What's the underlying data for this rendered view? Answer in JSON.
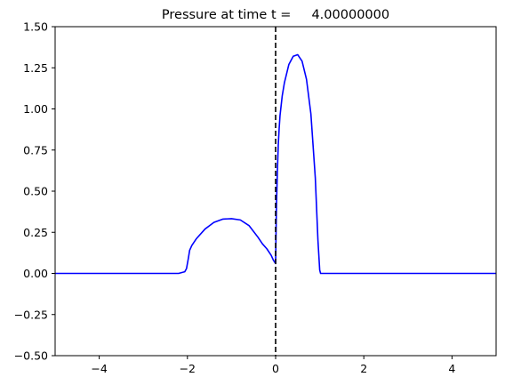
{
  "chart_data": {
    "type": "line",
    "title": "Pressure at time t =     4.00000000",
    "xlabel": "",
    "ylabel": "",
    "xlim": [
      -5,
      5
    ],
    "ylim": [
      -0.5,
      1.5
    ],
    "grid": false,
    "xticks": [
      -4,
      -2,
      0,
      2,
      4
    ],
    "xtick_labels": [
      "−4",
      "−2",
      "0",
      "2",
      "4"
    ],
    "yticks": [
      -0.5,
      -0.25,
      0.0,
      0.25,
      0.5,
      0.75,
      1.0,
      1.25,
      1.5
    ],
    "ytick_labels": [
      "−0.50",
      "−0.25",
      "0.00",
      "0.25",
      "0.50",
      "0.75",
      "1.00",
      "1.25",
      "1.50"
    ],
    "series": [
      {
        "color": "#0000ff",
        "linestyle": "solid",
        "x": [
          -5.0,
          -4.0,
          -3.0,
          -2.2,
          -2.06,
          -2.02,
          -2.0,
          -1.98,
          -1.95,
          -1.9,
          -1.8,
          -1.6,
          -1.4,
          -1.2,
          -1.0,
          -0.8,
          -0.6,
          -0.4,
          -0.3,
          -0.2,
          -0.1,
          -0.05,
          0.0,
          0.01,
          0.02,
          0.04,
          0.06,
          0.08,
          0.1,
          0.15,
          0.2,
          0.3,
          0.4,
          0.5,
          0.6,
          0.7,
          0.8,
          0.9,
          0.96,
          1.0,
          1.02,
          1.05,
          1.1,
          2.0,
          3.0,
          4.0,
          5.0
        ],
        "y": [
          0.0,
          0.0,
          0.0,
          0.0,
          0.01,
          0.03,
          0.06,
          0.09,
          0.14,
          0.17,
          0.21,
          0.27,
          0.31,
          0.33,
          0.333,
          0.325,
          0.29,
          0.22,
          0.18,
          0.15,
          0.11,
          0.08,
          0.06,
          0.25,
          0.42,
          0.62,
          0.78,
          0.88,
          0.96,
          1.08,
          1.16,
          1.27,
          1.32,
          1.33,
          1.29,
          1.18,
          0.97,
          0.58,
          0.2,
          0.02,
          0.0,
          0.0,
          0.0,
          0.0,
          0.0,
          0.0,
          0.0
        ]
      }
    ],
    "vlines": [
      {
        "x": 0,
        "color": "#000000",
        "linestyle": "dashed"
      }
    ]
  }
}
